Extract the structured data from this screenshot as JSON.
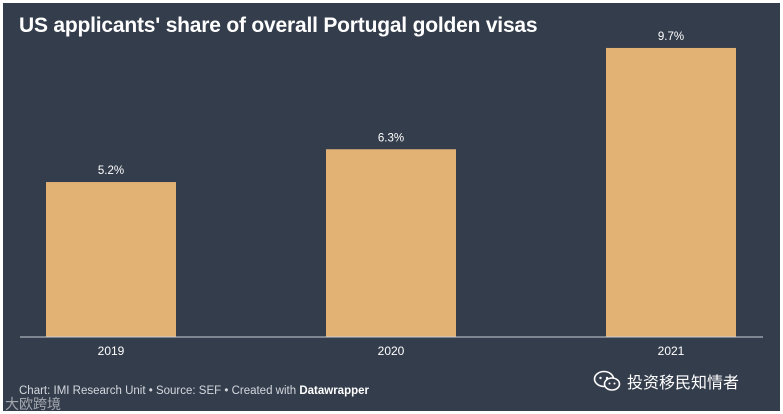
{
  "chart_data": {
    "type": "bar",
    "title": "US applicants' share of overall Portugal golden visas",
    "categories": [
      "2019",
      "2020",
      "2021"
    ],
    "values": [
      5.2,
      6.3,
      9.7
    ],
    "value_labels": [
      "5.2%",
      "6.3%",
      "9.7%"
    ],
    "xlabel": "",
    "ylabel": "",
    "ylim": [
      0,
      10.0
    ],
    "grid": false,
    "bar_color": "#e2b275",
    "background_color": "#343d4c"
  },
  "footer": {
    "prefix": "Chart: IMI Research Unit • Source: SEF • Created with ",
    "tool": "Datawrapper"
  },
  "watermark": {
    "text": "投资移民知情者",
    "secondary": "大欧跨境",
    "icon": "wechat-icon"
  }
}
